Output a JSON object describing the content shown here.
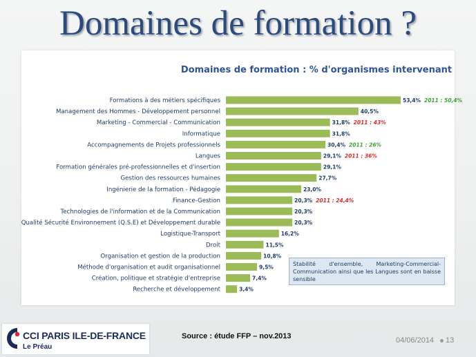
{
  "slide_title": "Domaines de formation ?",
  "chart_data": {
    "type": "bar",
    "orientation": "horizontal",
    "title": "Domaines de formation : % d'organismes intervenant",
    "categories": [
      "Formations à des métiers spécifiques",
      "Management des Hommes - Développement personnel",
      "Marketing - Commercial - Communication",
      "Informatique",
      "Accompagnements de Projets professionnels",
      "Langues",
      "Formation générales pré-professionnelles et d'insertion",
      "Gestion des ressources humaines",
      "Ingénierie de la formation - Pédagogie",
      "Finance-Gestion",
      "Technologies de l'information et de la Communication",
      "Qualité Sécurité Environnement (Q.S.E) et Développement durable",
      "Logistique-Transport",
      "Droit",
      "Organisation et gestion de la production",
      "Méthode d'organisation et audit organisationnel",
      "Création, politique et stratégie d'entreprise",
      "Recherche et développement"
    ],
    "values": [
      53.4,
      40.5,
      31.8,
      31.8,
      30.4,
      29.1,
      29.1,
      27.7,
      23.0,
      20.3,
      20.3,
      20.3,
      16.2,
      11.5,
      10.8,
      9.5,
      7.4,
      3.4
    ],
    "value_labels": [
      "53,4%",
      "40,5%",
      "31,8%",
      "31,8%",
      "30,4%",
      "29,1%",
      "29,1%",
      "27,7%",
      "23,0%",
      "20,3%",
      "20,3%",
      "20,3%",
      "16,2%",
      "11,5%",
      "10,8%",
      "9,5%",
      "7,4%",
      "3,4%"
    ],
    "annotations": [
      {
        "category_index": 0,
        "text": "2011 : 50,4%",
        "color": "#3aa33a"
      },
      {
        "category_index": 2,
        "text": "2011 : 43%",
        "color": "#d92b2b"
      },
      {
        "category_index": 4,
        "text": "2011 : 26%",
        "color": "#3aa33a"
      },
      {
        "category_index": 5,
        "text": "2011 : 36%",
        "color": "#d92b2b"
      },
      {
        "category_index": 9,
        "text": "2011 : 24,4%",
        "color": "#d92b2b"
      }
    ],
    "bar_color": "#9bbb59",
    "xlim": [
      0,
      60
    ],
    "grid": false,
    "legend": "none"
  },
  "comment": "Stabilité d'ensemble, Marketing-Commercial-Communication ainsi que les Langues sont en baisse sensible",
  "logo": {
    "name": "CCI PARIS ILE-DE-FRANCE",
    "subtitle": "Le Préau"
  },
  "source": "Source : étude FFP – nov.2013",
  "footer": {
    "date": "04/06/2014",
    "page": "13"
  },
  "colors": {
    "title": "#2c4a7c",
    "chart_title": "#2f5496",
    "bar": "#9bbb59",
    "label": "#1f3d66",
    "comment_bg": "#dde7f2"
  }
}
